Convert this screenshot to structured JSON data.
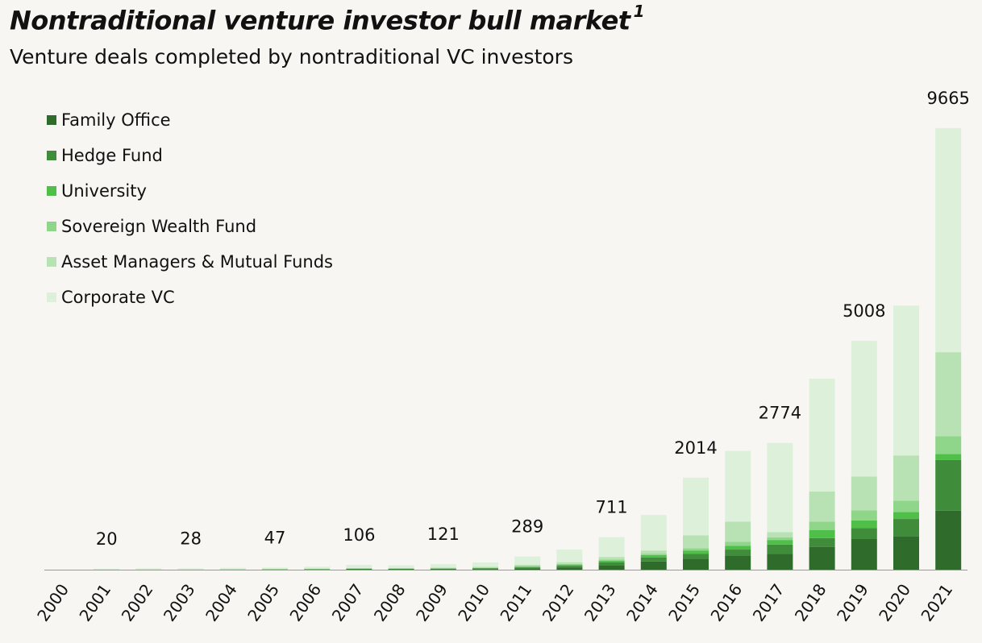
{
  "header": {
    "title": "Nontraditional venture investor bull market",
    "footnote": "1",
    "subtitle": "Venture deals completed by nontraditional VC investors"
  },
  "legend": {
    "items": [
      {
        "label": "Family Office",
        "color": "#2f6b2a"
      },
      {
        "label": "Hedge Fund",
        "color": "#3f8c3a"
      },
      {
        "label": "University",
        "color": "#4fbf4a"
      },
      {
        "label": "Sovereign Wealth Fund",
        "color": "#8fd68a"
      },
      {
        "label": "Asset Managers & Mutual Funds",
        "color": "#b8e2b4"
      },
      {
        "label": "Corporate VC",
        "color": "#dcf0da"
      }
    ]
  },
  "chart_data": {
    "type": "bar",
    "stacked": true,
    "title": "Nontraditional venture investor bull market",
    "subtitle": "Venture deals completed by nontraditional VC investors",
    "xlabel": "",
    "ylabel": "",
    "ylim": [
      0,
      10000
    ],
    "grid": false,
    "legend_position": "top-left",
    "categories": [
      "2000",
      "2001",
      "2002",
      "2003",
      "2004",
      "2005",
      "2006",
      "2007",
      "2008",
      "2009",
      "2010",
      "2011",
      "2012",
      "2013",
      "2014",
      "2015",
      "2016",
      "2017",
      "2018",
      "2019",
      "2020",
      "2021"
    ],
    "series": [
      {
        "name": "Family Office",
        "color": "#2f6b2a",
        "values": [
          0,
          1,
          1,
          1,
          2,
          3,
          5,
          8,
          8,
          10,
          14,
          25,
          50,
          100,
          180,
          240,
          300,
          350,
          500,
          670,
          730,
          1290
        ]
      },
      {
        "name": "Hedge Fund",
        "color": "#3f8c3a",
        "values": [
          0,
          1,
          1,
          1,
          2,
          4,
          7,
          10,
          10,
          12,
          15,
          25,
          35,
          60,
          90,
          110,
          140,
          200,
          190,
          240,
          380,
          1110
        ]
      },
      {
        "name": "University",
        "color": "#4fbf4a",
        "values": [
          0,
          0,
          0,
          0,
          1,
          2,
          3,
          5,
          5,
          6,
          8,
          15,
          20,
          35,
          50,
          70,
          80,
          100,
          180,
          170,
          150,
          130
        ]
      },
      {
        "name": "Sovereign Wealth Fund",
        "color": "#8fd68a",
        "values": [
          0,
          1,
          1,
          1,
          2,
          3,
          4,
          5,
          5,
          6,
          10,
          15,
          20,
          25,
          30,
          50,
          90,
          60,
          180,
          220,
          250,
          390
        ]
      },
      {
        "name": "Asset Managers & Mutual Funds",
        "color": "#b8e2b4",
        "values": [
          0,
          2,
          3,
          3,
          4,
          5,
          6,
          8,
          8,
          10,
          15,
          30,
          40,
          60,
          70,
          280,
          440,
          110,
          660,
          740,
          990,
          1840
        ]
      },
      {
        "name": "Corporate VC",
        "color": "#dcf0da",
        "values": [
          0,
          15,
          22,
          22,
          28,
          30,
          40,
          70,
          60,
          77,
          96,
          179,
          276,
          431,
          777,
          1264,
          1550,
          1954,
          2470,
          2968,
          3280,
          4905
        ]
      }
    ],
    "data_labels": [
      {
        "category": "2001",
        "text": "20"
      },
      {
        "category": "2003",
        "text": "28"
      },
      {
        "category": "2005",
        "text": "47"
      },
      {
        "category": "2007",
        "text": "106"
      },
      {
        "category": "2009",
        "text": "121"
      },
      {
        "category": "2011",
        "text": "289"
      },
      {
        "category": "2013",
        "text": "711"
      },
      {
        "category": "2015",
        "text": "2014"
      },
      {
        "category": "2017",
        "text": "2774"
      },
      {
        "category": "2019",
        "text": "5008"
      },
      {
        "category": "2021",
        "text": "9665"
      }
    ]
  }
}
